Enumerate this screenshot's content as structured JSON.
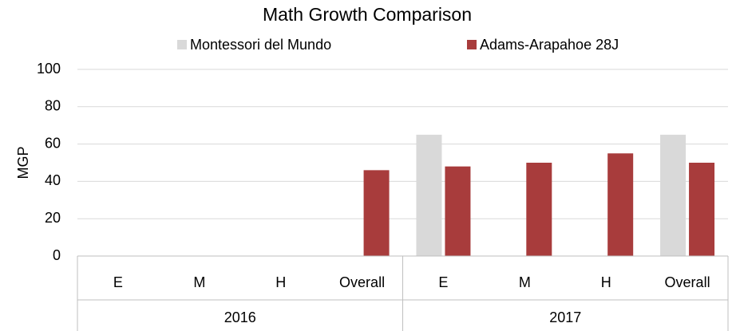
{
  "chart_data": {
    "type": "bar",
    "title": "Math Growth Comparison",
    "y_label": "MGP",
    "categories": [
      "E",
      "M",
      "H",
      "Overall",
      "E",
      "M",
      "H",
      "Overall"
    ],
    "groups": [
      "2016",
      "2017"
    ],
    "series": [
      {
        "name": "Montessori del Mundo",
        "color": "#d9d9d9",
        "values": [
          null,
          null,
          null,
          null,
          65,
          null,
          null,
          65
        ]
      },
      {
        "name": "Adams-Arapahoe 28J",
        "color": "#a83c3c",
        "values": [
          null,
          null,
          null,
          46,
          48,
          50,
          55,
          50
        ]
      }
    ],
    "ylim": [
      0,
      100
    ],
    "yticks": [
      0,
      20,
      40,
      60,
      80,
      100
    ],
    "grid": true,
    "legend": "top"
  }
}
